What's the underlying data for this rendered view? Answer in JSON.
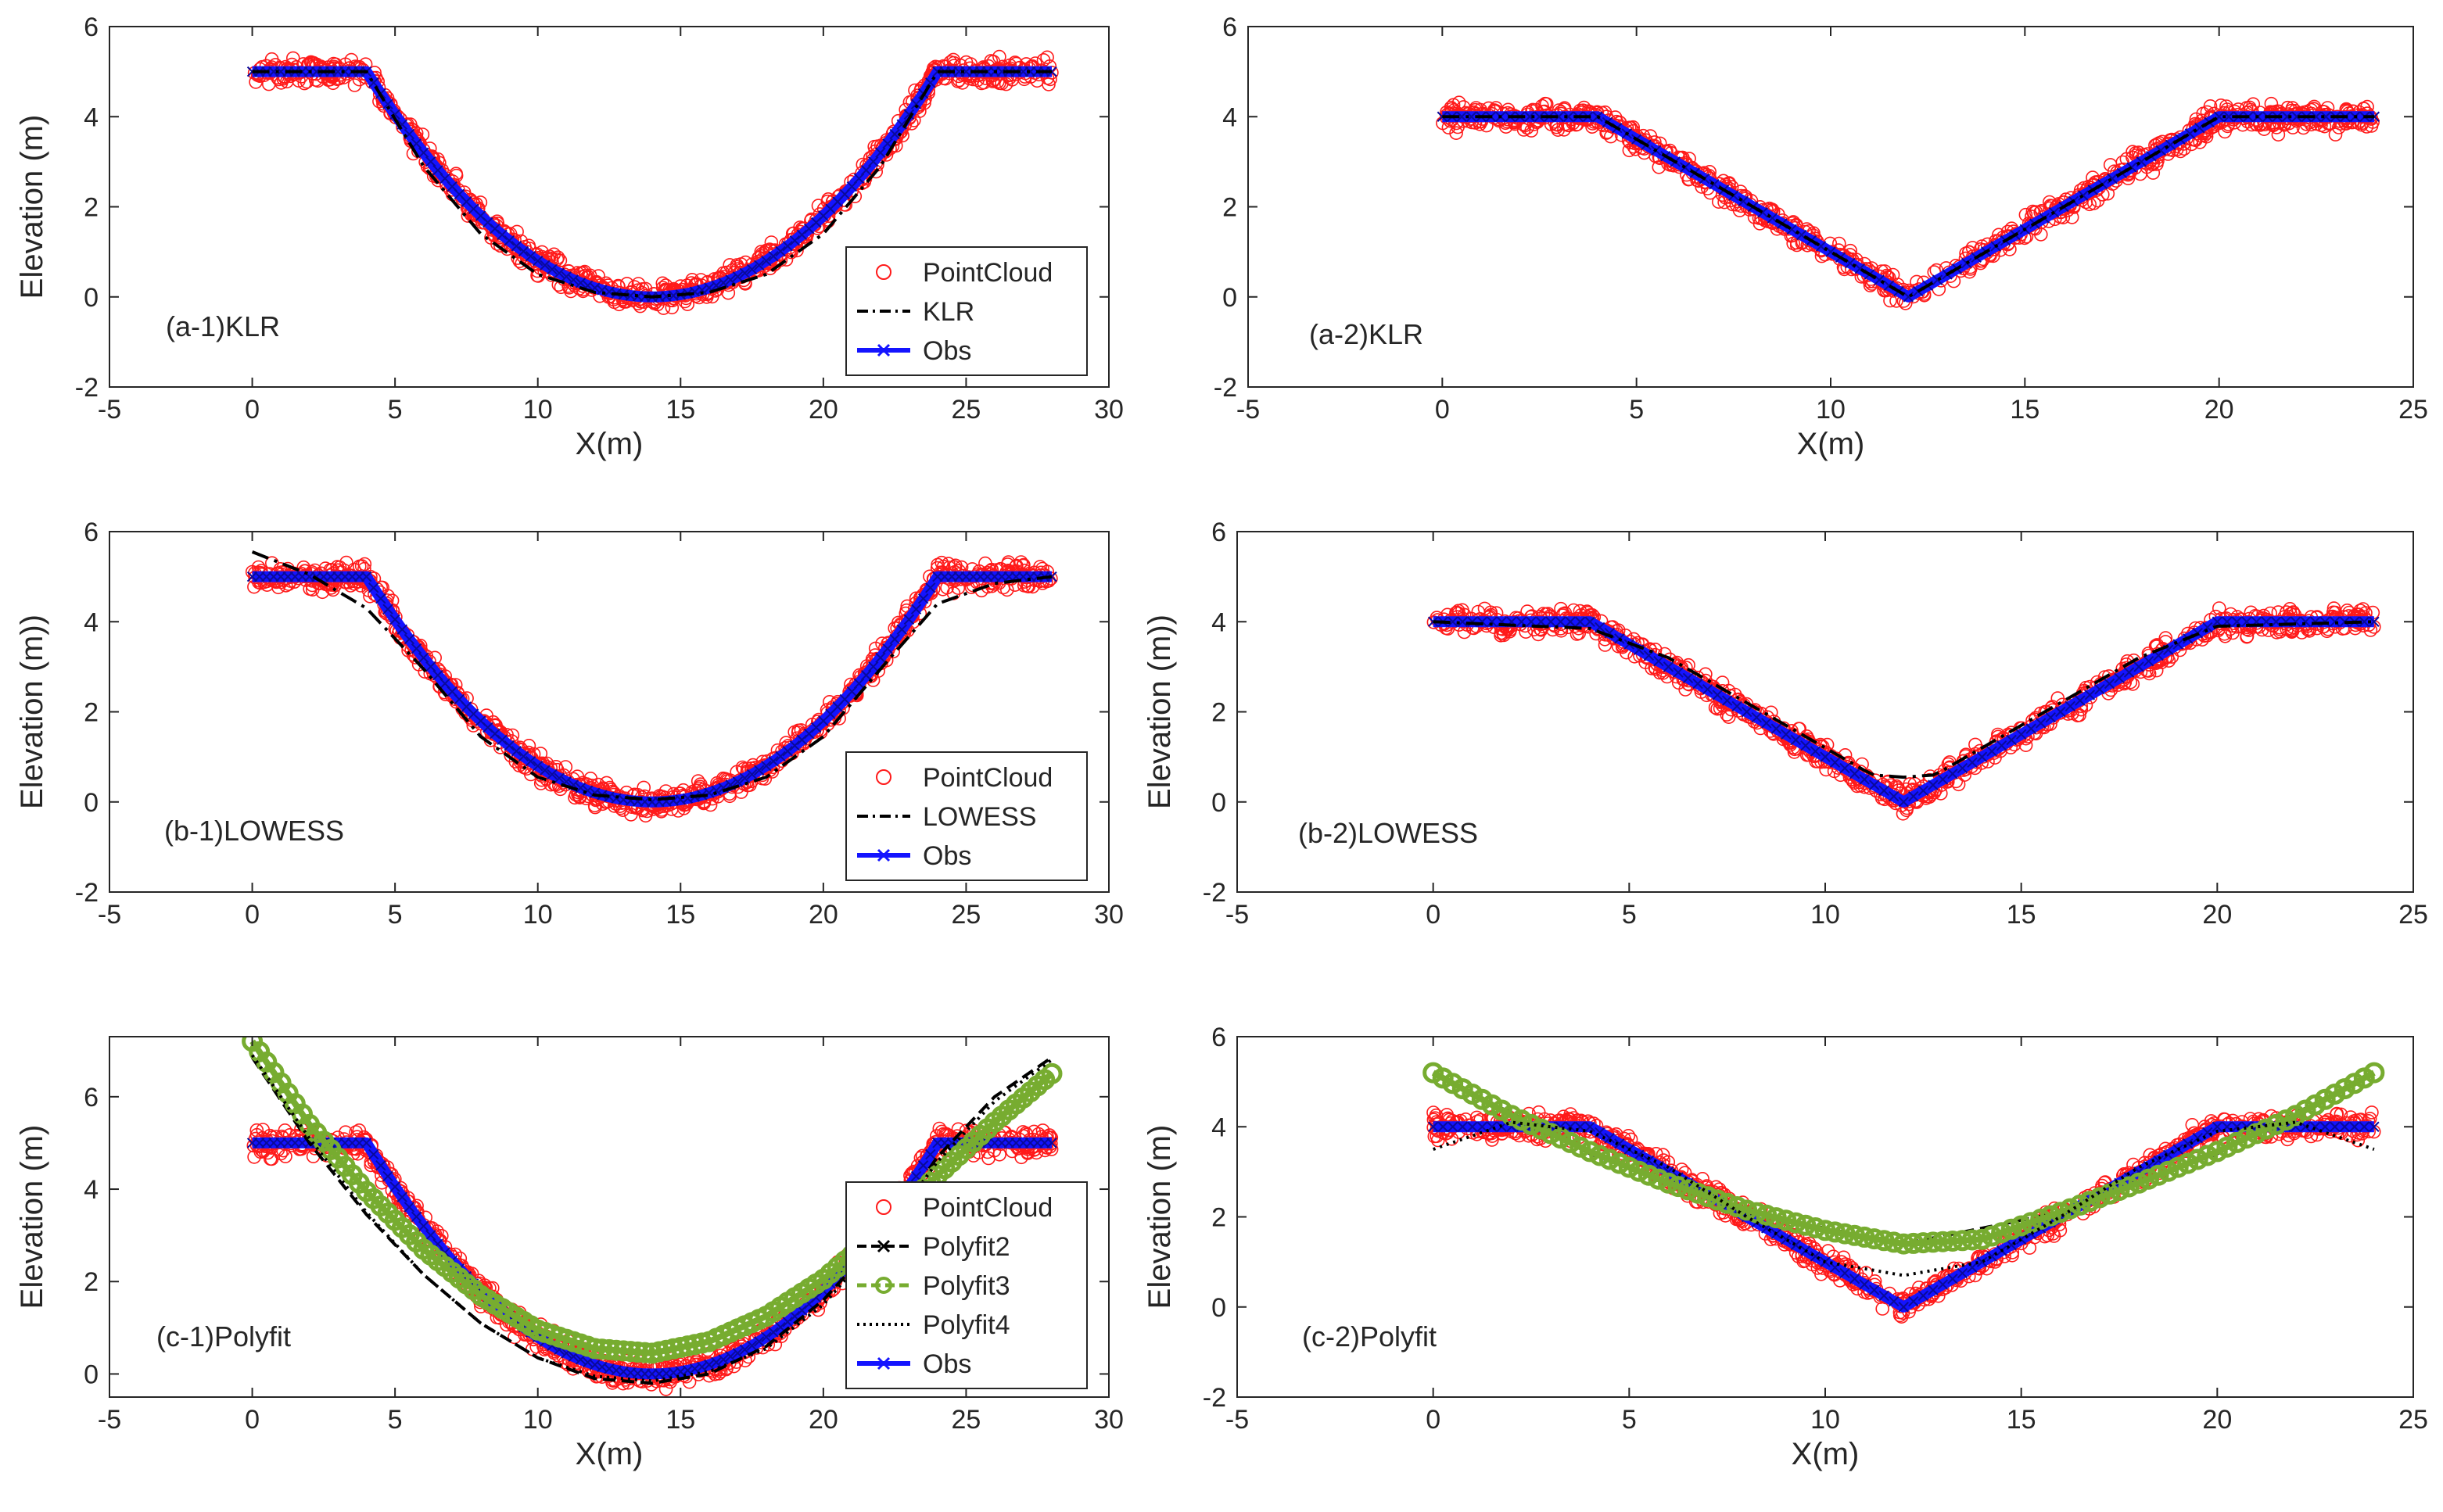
{
  "chart_data": [
    {
      "id": "a1",
      "type": "scatter",
      "profile": "U",
      "annotation": "(a-1)KLR",
      "xlabel": "X(m)",
      "ylabel": "Elevation (m)",
      "xlim": [
        -5,
        30
      ],
      "ylim": [
        -2,
        6
      ],
      "xticks": [
        "-5",
        "0",
        "5",
        "10",
        "15",
        "20",
        "25",
        "30"
      ],
      "yticks": [
        "-2",
        "0",
        "2",
        "4",
        "6"
      ],
      "obs": [
        [
          0,
          5
        ],
        [
          4,
          5
        ],
        [
          6,
          2.9
        ],
        [
          8,
          1.4
        ],
        [
          10,
          0.5
        ],
        [
          12,
          0.1
        ],
        [
          14,
          0
        ],
        [
          16,
          0.1
        ],
        [
          18,
          0.5
        ],
        [
          20,
          1.4
        ],
        [
          22,
          2.9
        ],
        [
          24,
          5
        ],
        [
          28,
          5
        ]
      ],
      "fits": [
        {
          "name": "KLR",
          "style": "dashdot",
          "points": [
            [
              0,
              5
            ],
            [
              4,
              5
            ],
            [
              6,
              2.9
            ],
            [
              8,
              1.4
            ],
            [
              10,
              0.5
            ],
            [
              12,
              0.1
            ],
            [
              14,
              0
            ],
            [
              16,
              0.1
            ],
            [
              18,
              0.5
            ],
            [
              20,
              1.4
            ],
            [
              22,
              2.9
            ],
            [
              24,
              5
            ],
            [
              28,
              5
            ]
          ]
        }
      ],
      "legend": [
        "PointCloud",
        "KLR",
        "Obs"
      ]
    },
    {
      "id": "a2",
      "type": "scatter",
      "profile": "V",
      "annotation": "(a-2)KLR",
      "xlabel": "X(m)",
      "ylabel": "",
      "xlim": [
        -5,
        25
      ],
      "ylim": [
        -2,
        6
      ],
      "xticks": [
        "-5",
        "0",
        "5",
        "10",
        "15",
        "20",
        "25"
      ],
      "yticks": [
        "-2",
        "0",
        "2",
        "4",
        "6"
      ],
      "obs": [
        [
          0,
          4
        ],
        [
          4,
          4
        ],
        [
          12,
          0
        ],
        [
          20,
          4
        ],
        [
          24,
          4
        ]
      ],
      "fits": [
        {
          "name": "KLR",
          "style": "dashdot",
          "points": [
            [
              0,
              4
            ],
            [
              4,
              4
            ],
            [
              12,
              0
            ],
            [
              20,
              4
            ],
            [
              24,
              4
            ]
          ]
        }
      ],
      "legend": []
    },
    {
      "id": "b1",
      "type": "scatter",
      "profile": "U",
      "annotation": "(b-1)LOWESS",
      "xlabel": "",
      "ylabel": "Elevation (m))",
      "xlim": [
        -5,
        30
      ],
      "ylim": [
        -2,
        6
      ],
      "xticks": [
        "-5",
        "0",
        "5",
        "10",
        "15",
        "20",
        "25",
        "30"
      ],
      "yticks": [
        "-2",
        "0",
        "2",
        "4",
        "6"
      ],
      "obs": [
        [
          0,
          5
        ],
        [
          4,
          5
        ],
        [
          6,
          2.9
        ],
        [
          8,
          1.4
        ],
        [
          10,
          0.5
        ],
        [
          12,
          0.1
        ],
        [
          14,
          0
        ],
        [
          16,
          0.1
        ],
        [
          18,
          0.5
        ],
        [
          20,
          1.4
        ],
        [
          22,
          2.9
        ],
        [
          24,
          5
        ],
        [
          28,
          5
        ]
      ],
      "fits": [
        {
          "name": "LOWESS",
          "style": "dashdot",
          "points": [
            [
              0,
              5.55
            ],
            [
              2,
              5.05
            ],
            [
              4,
              4.3
            ],
            [
              6,
              2.95
            ],
            [
              8,
              1.45
            ],
            [
              10,
              0.55
            ],
            [
              12,
              0.15
            ],
            [
              14,
              0.05
            ],
            [
              16,
              0.15
            ],
            [
              18,
              0.55
            ],
            [
              20,
              1.45
            ],
            [
              22,
              2.95
            ],
            [
              24,
              4.4
            ],
            [
              26,
              4.85
            ],
            [
              28,
              5.0
            ]
          ]
        }
      ],
      "legend": [
        "PointCloud",
        "LOWESS",
        "Obs"
      ]
    },
    {
      "id": "b2",
      "type": "scatter",
      "profile": "V",
      "annotation": "(b-2)LOWESS",
      "xlabel": "",
      "ylabel": "Elevation (m))",
      "xlim": [
        -5,
        25
      ],
      "ylim": [
        -2,
        6
      ],
      "xticks": [
        "-5",
        "0",
        "5",
        "10",
        "15",
        "20",
        "25"
      ],
      "yticks": [
        "-2",
        "0",
        "2",
        "4",
        "6"
      ],
      "obs": [
        [
          0,
          4
        ],
        [
          4,
          4
        ],
        [
          12,
          0
        ],
        [
          20,
          4
        ],
        [
          24,
          4
        ]
      ],
      "fits": [
        {
          "name": "LOWESS",
          "style": "dashdot",
          "points": [
            [
              0,
              4
            ],
            [
              4,
              3.85
            ],
            [
              6,
              3.2
            ],
            [
              8,
              2.2
            ],
            [
              10,
              1.2
            ],
            [
              11.2,
              0.6
            ],
            [
              12,
              0.55
            ],
            [
              12.8,
              0.6
            ],
            [
              14,
              1.2
            ],
            [
              16,
              2.2
            ],
            [
              18,
              3.2
            ],
            [
              20,
              3.9
            ],
            [
              24,
              4
            ]
          ]
        }
      ],
      "legend": []
    },
    {
      "id": "c1",
      "type": "scatter",
      "profile": "U",
      "annotation": "(c-1)Polyfit",
      "xlabel": "X(m)",
      "ylabel": "Elevation (m)",
      "xlim": [
        -5,
        30
      ],
      "ylim": [
        -0.5,
        7.3
      ],
      "xticks": [
        "-5",
        "0",
        "5",
        "10",
        "15",
        "20",
        "25",
        "30"
      ],
      "yticks": [
        "0",
        "2",
        "4",
        "6"
      ],
      "obs": [
        [
          0,
          5
        ],
        [
          4,
          5
        ],
        [
          6,
          2.9
        ],
        [
          8,
          1.4
        ],
        [
          10,
          0.5
        ],
        [
          12,
          0.1
        ],
        [
          14,
          0
        ],
        [
          16,
          0.1
        ],
        [
          18,
          0.5
        ],
        [
          20,
          1.4
        ],
        [
          22,
          2.9
        ],
        [
          24,
          5
        ],
        [
          28,
          5
        ]
      ],
      "fits": [
        {
          "name": "Polyfit2",
          "style": "dash-x",
          "color": "#000000",
          "points": [
            [
              0,
              6.85
            ],
            [
              2,
              5.0
            ],
            [
              4,
              3.45
            ],
            [
              6,
              2.15
            ],
            [
              8,
              1.1
            ],
            [
              10,
              0.35
            ],
            [
              12,
              -0.1
            ],
            [
              14,
              -0.2
            ],
            [
              16,
              0.0
            ],
            [
              18,
              0.6
            ],
            [
              20,
              1.6
            ],
            [
              22,
              2.95
            ],
            [
              24,
              4.7
            ],
            [
              26,
              6.0
            ],
            [
              28,
              6.85
            ]
          ]
        },
        {
          "name": "Polyfit3",
          "style": "dash-o",
          "color": "#77ac30",
          "points": [
            [
              0,
              7.2
            ],
            [
              2,
              5.4
            ],
            [
              4,
              3.95
            ],
            [
              6,
              2.7
            ],
            [
              8,
              1.7
            ],
            [
              10,
              0.95
            ],
            [
              12,
              0.55
            ],
            [
              14,
              0.45
            ],
            [
              16,
              0.7
            ],
            [
              18,
              1.25
            ],
            [
              20,
              2.05
            ],
            [
              22,
              3.1
            ],
            [
              24,
              4.3
            ],
            [
              26,
              5.45
            ],
            [
              28,
              6.5
            ]
          ]
        },
        {
          "name": "Polyfit4",
          "style": "dotted",
          "color": "#000000",
          "points": [
            [
              0,
              6.9
            ],
            [
              2,
              5.1
            ],
            [
              4,
              3.5
            ],
            [
              6,
              2.15
            ],
            [
              8,
              1.1
            ],
            [
              10,
              0.35
            ],
            [
              12,
              -0.05
            ],
            [
              14,
              -0.15
            ],
            [
              16,
              0.05
            ],
            [
              18,
              0.55
            ],
            [
              20,
              1.5
            ],
            [
              22,
              2.9
            ],
            [
              24,
              4.6
            ],
            [
              26,
              5.9
            ],
            [
              28,
              6.8
            ]
          ]
        }
      ],
      "legend": [
        "PointCloud",
        "Polyfit2",
        "Polyfit3",
        "Polyfit4",
        "Obs"
      ]
    },
    {
      "id": "c2",
      "type": "scatter",
      "profile": "V",
      "annotation": "(c-2)Polyfit",
      "xlabel": "X(m)",
      "ylabel": "Elevation (m)",
      "xlim": [
        -5,
        25
      ],
      "ylim": [
        -2,
        6
      ],
      "xticks": [
        "-5",
        "0",
        "5",
        "10",
        "15",
        "20",
        "25"
      ],
      "yticks": [
        "-2",
        "0",
        "2",
        "4",
        "6"
      ],
      "obs": [
        [
          0,
          4
        ],
        [
          4,
          4
        ],
        [
          12,
          0
        ],
        [
          20,
          4
        ],
        [
          24,
          4
        ]
      ],
      "fits": [
        {
          "name": "Polyfit2",
          "style": "dash-x",
          "color": "#000000",
          "points": [
            [
              0,
              5.2
            ],
            [
              4,
              3.4
            ],
            [
              8,
              2.1
            ],
            [
              12,
              1.4
            ],
            [
              16,
              2.1
            ],
            [
              20,
              3.4
            ],
            [
              24,
              5.2
            ]
          ]
        },
        {
          "name": "Polyfit3",
          "style": "dash-o",
          "color": "#77ac30",
          "points": [
            [
              0,
              5.2
            ],
            [
              2,
              4.25
            ],
            [
              4,
              3.45
            ],
            [
              6,
              2.75
            ],
            [
              8,
              2.15
            ],
            [
              10,
              1.7
            ],
            [
              12,
              1.4
            ],
            [
              14,
              1.5
            ],
            [
              16,
              2.1
            ],
            [
              18,
              2.75
            ],
            [
              20,
              3.45
            ],
            [
              22,
              4.25
            ],
            [
              24,
              5.2
            ]
          ]
        },
        {
          "name": "Polyfit4",
          "style": "dotted",
          "color": "#000000",
          "points": [
            [
              0,
              3.5
            ],
            [
              2,
              4.1
            ],
            [
              4,
              3.9
            ],
            [
              6,
              3.1
            ],
            [
              8,
              2.0
            ],
            [
              10,
              1.0
            ],
            [
              12,
              0.7
            ],
            [
              14,
              1.0
            ],
            [
              16,
              2.0
            ],
            [
              18,
              3.1
            ],
            [
              20,
              3.9
            ],
            [
              22,
              4.1
            ],
            [
              24,
              3.5
            ]
          ]
        }
      ],
      "legend": []
    }
  ]
}
